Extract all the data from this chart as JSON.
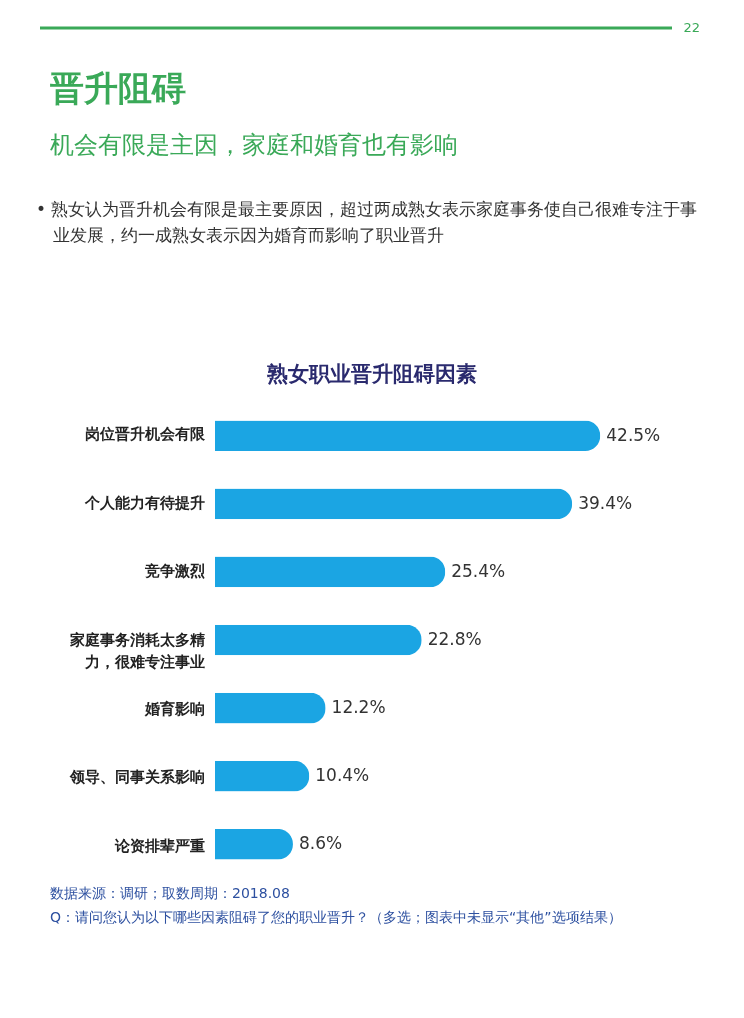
{
  "chart_data": {
    "type": "bar",
    "orientation": "horizontal",
    "title": "熟女职业晋升阻碍因素",
    "categories": [
      "岗位晋升机会有限",
      "个人能力有待提升",
      "竞争激烈",
      "家庭事务消耗太多精力，很难专注事业",
      "婚育影响",
      "领导、同事关系影响",
      "论资排辈严重"
    ],
    "values": [
      42.5,
      39.4,
      25.4,
      22.8,
      12.2,
      10.4,
      8.6
    ],
    "color": "#1ba5e3",
    "value_labels": [
      "42.5%",
      "39.4%",
      "25.4%",
      "22.8%",
      "12.2%",
      "10.4%",
      "8.6%"
    ],
    "annotations": [
      "22",
      "晋升阻碍",
      "机会有限是主因，家庭和婚育也有影响",
      "• 熟女认为晋升机会有限是最主要原因，超过两成熟女表示家庭事务使自己很难专注于事业发展，约一成熟女表示因为婚育而影响了职业晋升",
      "数据来源：调研；取数周期：2018.08",
      "Q：请问您认为以下哪些因素阻碍了您的职业晋升？（多选；图表中未显示“其他”选项结果）"
    ],
    "grid": false
  }
}
